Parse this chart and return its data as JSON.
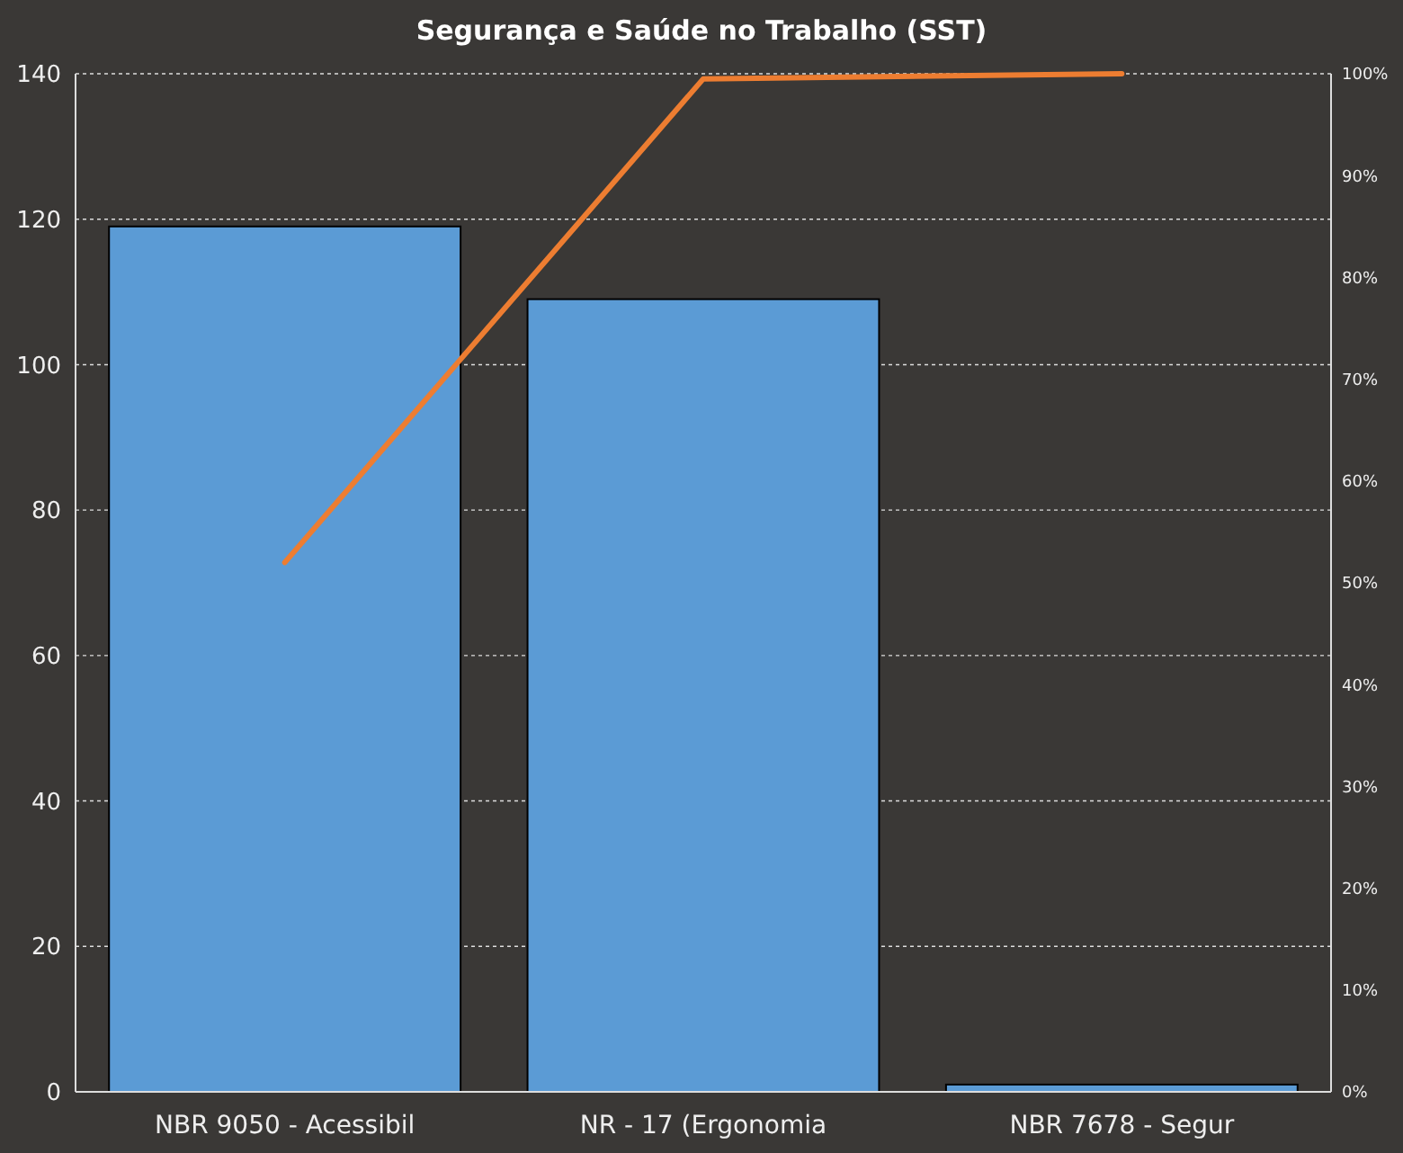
{
  "chart_data": {
    "type": "bar",
    "title": "Segurança e Saúde no Trabalho (SST)",
    "categories": [
      "NBR 9050 - Acessibil",
      "NR - 17 (Ergonomia",
      "NBR 7678 - Segur"
    ],
    "series": [
      {
        "color": "#5b9bd5",
        "values": [
          119,
          109,
          1
        ]
      },
      {
        "type": "line",
        "axis": "y2",
        "color": "#ed7d31",
        "values": [
          52,
          99.5,
          100
        ]
      }
    ],
    "ylim": [
      0,
      140
    ],
    "yticks": [
      0,
      20,
      40,
      60,
      80,
      100,
      120,
      140
    ],
    "y2lim": [
      0,
      100
    ],
    "y2ticks": [
      {
        "value": 0,
        "label": "0%"
      },
      {
        "value": 10,
        "label": "10%"
      },
      {
        "value": 20,
        "label": "20%"
      },
      {
        "value": 30,
        "label": "30%"
      },
      {
        "value": 40,
        "label": "40%"
      },
      {
        "value": 50,
        "label": "50%"
      },
      {
        "value": 60,
        "label": "60%"
      },
      {
        "value": 70,
        "label": "70%"
      },
      {
        "value": 80,
        "label": "80%"
      },
      {
        "value": 90,
        "label": "90%"
      },
      {
        "value": 100,
        "label": "100%"
      }
    ],
    "grid": "y",
    "marker": "none",
    "line_style": "solid"
  }
}
